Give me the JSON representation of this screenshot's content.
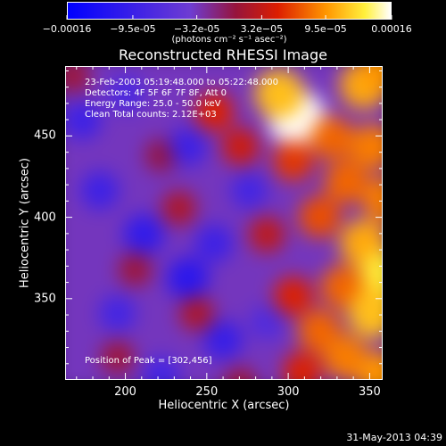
{
  "chart_data": {
    "type": "heatmap",
    "title": "Reconstructed RHESSI Image",
    "xlabel": "Heliocentric X (arcsec)",
    "ylabel": "Heliocentric Y (arcsec)",
    "xlim": [
      163,
      358
    ],
    "ylim": [
      300,
      493
    ],
    "x_ticks": [
      200,
      250,
      300,
      350
    ],
    "y_ticks": [
      350,
      400,
      450
    ],
    "colorbar": {
      "min": -0.00016,
      "max": 0.00016,
      "tick_labels": [
        "-0.00016",
        "-9.5e-05",
        "-3.2e-05",
        "3.2e-05",
        "9.5e-05",
        "0.00016"
      ],
      "units": "(photons cm⁻² s⁻¹ asec⁻²)"
    },
    "annotations": [
      "23-Feb-2003 05:19:48.000 to 05:22:48.000",
      "Detectors: 4F 5F 6F 7F 8F, Att 0",
      "Energy Range: 25.0 - 50.0 keV",
      "Clean    Total counts: 2.12E+03"
    ],
    "peak_label": "Position of Peak = [302,456]",
    "peak_position": [
      302,
      456
    ],
    "blobs": [
      {
        "x": 302,
        "y": 456,
        "v": 1.0
      },
      {
        "x": 292,
        "y": 470,
        "v": 0.75
      },
      {
        "x": 340,
        "y": 475,
        "v": 0.7
      },
      {
        "x": 352,
        "y": 485,
        "v": 0.65
      },
      {
        "x": 322,
        "y": 445,
        "v": 0.55
      },
      {
        "x": 345,
        "y": 440,
        "v": 0.6
      },
      {
        "x": 300,
        "y": 432,
        "v": 0.45
      },
      {
        "x": 330,
        "y": 420,
        "v": 0.55
      },
      {
        "x": 352,
        "y": 410,
        "v": 0.6
      },
      {
        "x": 315,
        "y": 400,
        "v": 0.5
      },
      {
        "x": 340,
        "y": 385,
        "v": 0.7
      },
      {
        "x": 352,
        "y": 365,
        "v": 0.85
      },
      {
        "x": 328,
        "y": 360,
        "v": 0.55
      },
      {
        "x": 345,
        "y": 345,
        "v": 0.75
      },
      {
        "x": 315,
        "y": 335,
        "v": 0.55
      },
      {
        "x": 300,
        "y": 355,
        "v": 0.4
      },
      {
        "x": 330,
        "y": 320,
        "v": 0.6
      },
      {
        "x": 350,
        "y": 310,
        "v": 0.65
      },
      {
        "x": 305,
        "y": 312,
        "v": 0.4
      },
      {
        "x": 285,
        "y": 390,
        "v": 0.3
      },
      {
        "x": 270,
        "y": 440,
        "v": 0.35
      },
      {
        "x": 255,
        "y": 460,
        "v": 0.4
      },
      {
        "x": 175,
        "y": 480,
        "v": 0.2
      },
      {
        "x": 235,
        "y": 405,
        "v": 0.25
      },
      {
        "x": 210,
        "y": 370,
        "v": 0.2
      },
      {
        "x": 245,
        "y": 345,
        "v": 0.25
      },
      {
        "x": 200,
        "y": 320,
        "v": 0.2
      },
      {
        "x": 270,
        "y": 305,
        "v": 0.2
      },
      {
        "x": 225,
        "y": 435,
        "v": 0.18
      },
      {
        "x": 190,
        "y": 415,
        "v": -0.5
      },
      {
        "x": 215,
        "y": 390,
        "v": -0.6
      },
      {
        "x": 240,
        "y": 365,
        "v": -0.65
      },
      {
        "x": 260,
        "y": 330,
        "v": -0.55
      },
      {
        "x": 200,
        "y": 345,
        "v": -0.45
      },
      {
        "x": 240,
        "y": 440,
        "v": -0.5
      },
      {
        "x": 275,
        "y": 415,
        "v": -0.45
      },
      {
        "x": 180,
        "y": 455,
        "v": -0.5
      },
      {
        "x": 225,
        "y": 310,
        "v": -0.45
      },
      {
        "x": 285,
        "y": 340,
        "v": -0.35
      },
      {
        "x": 255,
        "y": 385,
        "v": -0.5
      },
      {
        "x": 205,
        "y": 470,
        "v": -0.4
      }
    ]
  },
  "timestamp": "31-May-2013 04:39"
}
